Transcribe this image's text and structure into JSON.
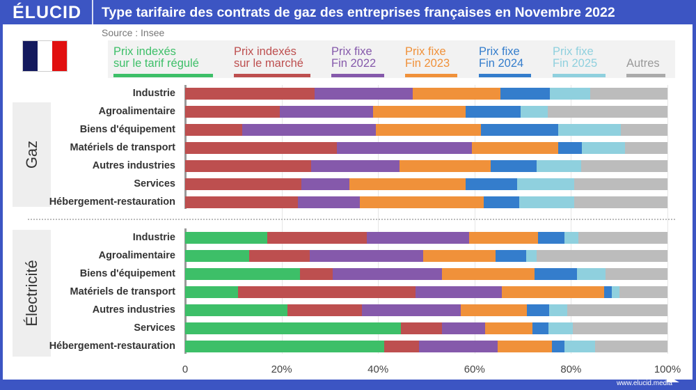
{
  "header": {
    "logo": "ÉLUCID",
    "title": "Type tarifaire des contrats de gaz des entreprises françaises en Novembre 2022"
  },
  "source": "Source : Insee",
  "footer": {
    "url": "www.elucid.media"
  },
  "flag_colors": [
    "#141a5e",
    "#ffffff",
    "#e10f0f"
  ],
  "chart_data": {
    "type": "bar",
    "orientation": "horizontal",
    "stacked": true,
    "grid": true,
    "legend_position": "top",
    "series": [
      {
        "name": "Prix indexés sur le tarif régulé",
        "name_lines": [
          "Prix indexés",
          "sur le tarif régulé"
        ],
        "color": "#3dbf68"
      },
      {
        "name": "Prix indexés sur le marché",
        "name_lines": [
          "Prix indexés",
          "sur le marché"
        ],
        "color": "#bd4f4f"
      },
      {
        "name": "Prix fixe Fin 2022",
        "name_lines": [
          "Prix fixe",
          "Fin 2022"
        ],
        "color": "#8559ab"
      },
      {
        "name": "Prix fixe Fin 2023",
        "name_lines": [
          "Prix fixe",
          "Fin 2023"
        ],
        "color": "#f0913a"
      },
      {
        "name": "Prix fixe Fin 2024",
        "name_lines": [
          "Prix fixe",
          "Fin 2024"
        ],
        "color": "#347dcc"
      },
      {
        "name": "Prix fixe Fin 2025",
        "name_lines": [
          "Prix fixe",
          "Fin 2025"
        ],
        "color": "#8fd0de"
      },
      {
        "name": "Autres",
        "name_lines": [
          "",
          "Autres"
        ],
        "color": "#bcbcbc"
      }
    ],
    "xlim": [
      0,
      100
    ],
    "xticks": [
      "0",
      "20%",
      "40%",
      "60%",
      "80%",
      "100%"
    ],
    "panels": [
      {
        "label": "Gaz",
        "categories": [
          "Industrie",
          "Agroalimentaire",
          "Biens d'équipement",
          "Matériels de transport",
          "Autres industries",
          "Services",
          "Hébergement-restauration"
        ],
        "values": [
          [
            0,
            26.8,
            20.4,
            18.2,
            10.2,
            8.4,
            16.0
          ],
          [
            0,
            19.6,
            19.3,
            19.3,
            11.3,
            5.7,
            24.8
          ],
          [
            0,
            11.9,
            27.7,
            21.7,
            16.1,
            12.9,
            9.7
          ],
          [
            0,
            31.4,
            28.1,
            17.9,
            4.9,
            8.9,
            8.8
          ],
          [
            0,
            26.1,
            18.4,
            18.9,
            9.4,
            9.3,
            17.9
          ],
          [
            0,
            24.1,
            9.9,
            24.2,
            10.7,
            11.8,
            19.3
          ],
          [
            0,
            23.4,
            12.8,
            25.7,
            7.4,
            11.3,
            19.4
          ]
        ]
      },
      {
        "label": "Électricité",
        "categories": [
          "Industrie",
          "Agroalimentaire",
          "Biens d'équipement",
          "Matériels de transport",
          "Autres industries",
          "Services",
          "Hébergement-restauration"
        ],
        "values": [
          [
            17.0,
            20.7,
            21.2,
            14.3,
            5.5,
            2.8,
            18.5
          ],
          [
            13.3,
            12.6,
            23.4,
            15.1,
            6.3,
            2.1,
            27.2
          ],
          [
            23.8,
            6.8,
            22.6,
            19.2,
            8.9,
            5.8,
            12.9
          ],
          [
            11.0,
            36.8,
            17.8,
            21.2,
            1.7,
            1.5,
            10.0
          ],
          [
            21.2,
            15.5,
            20.5,
            13.7,
            4.5,
            3.8,
            20.8
          ],
          [
            44.7,
            8.5,
            9.0,
            9.8,
            3.3,
            5.1,
            19.6
          ],
          [
            41.2,
            7.3,
            16.3,
            11.2,
            2.7,
            6.3,
            15.0
          ]
        ]
      }
    ]
  }
}
